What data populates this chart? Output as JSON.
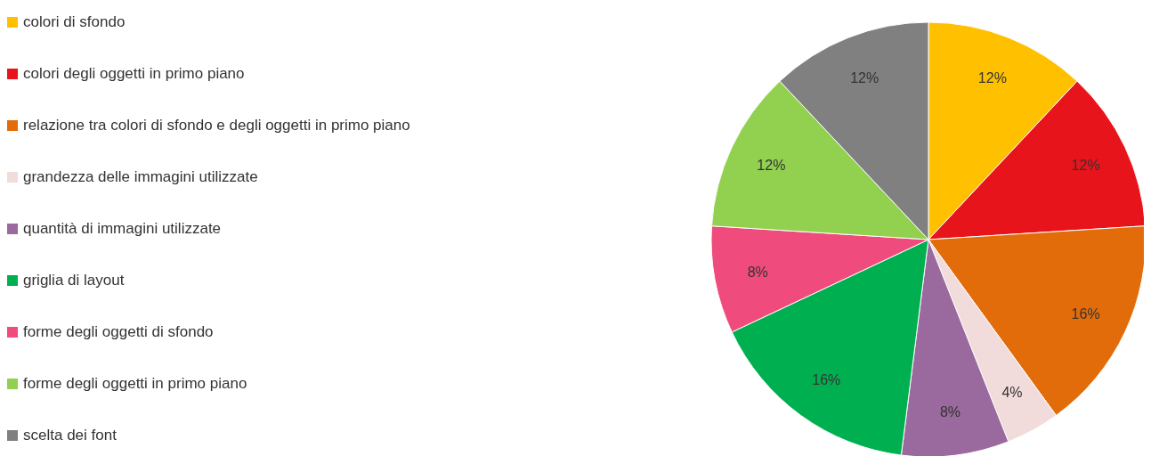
{
  "chart_data": {
    "type": "pie",
    "categories": [
      "colori di sfondo",
      "colori degli oggetti in primo piano",
      "relazione tra colori di sfondo e degli oggetti in primo piano",
      "grandezza delle immagini utilizzate",
      "quantità di immagini utilizzate",
      "griglia di layout",
      "forme degli oggetti di sfondo",
      "forme degli oggetti in primo piano",
      "scelta dei font"
    ],
    "values": [
      12,
      12,
      16,
      4,
      8,
      16,
      8,
      12,
      12
    ],
    "colors": [
      "#ffc000",
      "#e8141b",
      "#e36c0a",
      "#f2dcdb",
      "#9a6a9e",
      "#00b050",
      "#ef4b7c",
      "#92d050",
      "#808080"
    ],
    "value_labels": [
      "12%",
      "12%",
      "16%",
      "4%",
      "8%",
      "16%",
      "8%",
      "12%",
      "12%"
    ],
    "legend": "left"
  }
}
